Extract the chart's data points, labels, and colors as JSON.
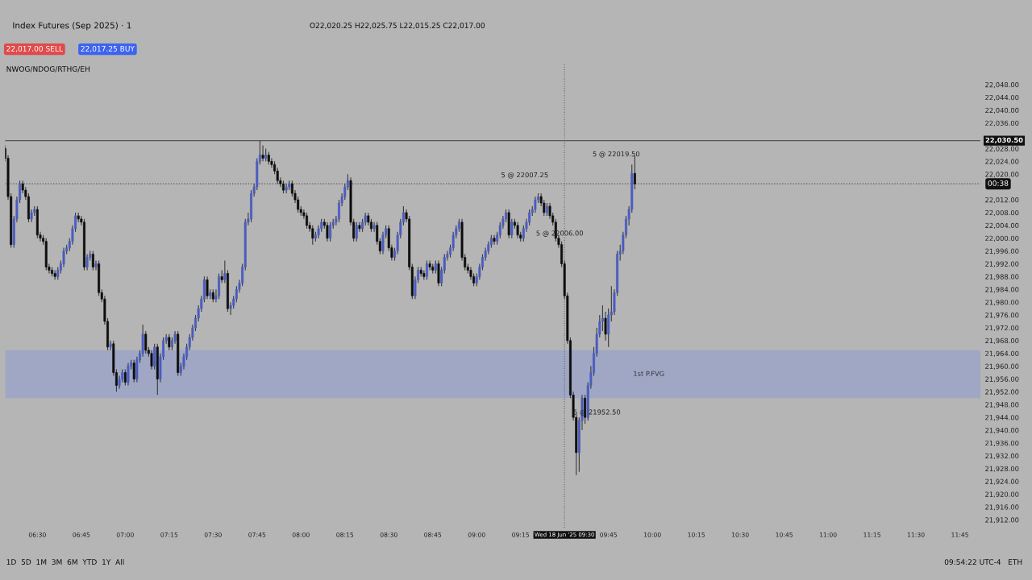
{
  "chart_data": {
    "type": "candlestick",
    "title": "Index Futures (Sep 2025) · 1",
    "subtitle": "O22,020.25 H22,025.75 L22,015.25 C22,017.00",
    "annotations": [
      "22,017.00 SELL",
      "22,017.25 BUY",
      "NWOG/NDOG/RTHG/EH",
      "1D  5D  1M  3M  6M  YTD  1Y  All",
      "09:54:22 UTC-4   ETH",
      "00:38",
      {
        "text": "5 @ 22007.25",
        "x": "2025-06-18T09:21",
        "y": 22013
      },
      {
        "text": "5 @ 22006.00",
        "x": "2025-06-18T09:23",
        "y": 22008
      },
      {
        "text": "5 @ 21952.50",
        "x": "2025-06-18T09:38",
        "y": 21950
      },
      {
        "text": "5 @ 22019.50",
        "x": "2025-06-18T09:53",
        "y": 22020.25
      }
    ],
    "x": [
      "2025-06-18T06:19",
      "2025-06-18T06:20",
      "2025-06-18T06:21",
      "2025-06-18T06:22",
      "2025-06-18T06:23",
      "2025-06-18T06:24",
      "2025-06-18T06:25",
      "2025-06-18T06:26",
      "2025-06-18T06:27",
      "2025-06-18T06:28",
      "2025-06-18T06:29",
      "2025-06-18T06:30",
      "2025-06-18T06:31",
      "2025-06-18T06:32",
      "2025-06-18T06:33",
      "2025-06-18T06:34",
      "2025-06-18T06:35",
      "2025-06-18T06:36",
      "2025-06-18T06:37",
      "2025-06-18T06:38",
      "2025-06-18T06:39",
      "2025-06-18T06:40",
      "2025-06-18T06:41",
      "2025-06-18T06:42",
      "2025-06-18T06:43",
      "2025-06-18T06:44",
      "2025-06-18T06:45",
      "2025-06-18T06:46",
      "2025-06-18T06:47",
      "2025-06-18T06:48",
      "2025-06-18T06:49",
      "2025-06-18T06:50",
      "2025-06-18T06:51",
      "2025-06-18T06:52",
      "2025-06-18T06:53",
      "2025-06-18T06:54",
      "2025-06-18T06:55",
      "2025-06-18T06:56",
      "2025-06-18T06:57",
      "2025-06-18T06:58",
      "2025-06-18T06:59",
      "2025-06-18T07:00",
      "2025-06-18T07:01",
      "2025-06-18T07:02",
      "2025-06-18T07:03",
      "2025-06-18T07:04",
      "2025-06-18T07:05",
      "2025-06-18T07:06",
      "2025-06-18T07:07",
      "2025-06-18T07:08",
      "2025-06-18T07:09",
      "2025-06-18T07:10",
      "2025-06-18T07:11",
      "2025-06-18T07:12",
      "2025-06-18T07:13",
      "2025-06-18T07:14",
      "2025-06-18T07:15",
      "2025-06-18T07:16",
      "2025-06-18T07:17",
      "2025-06-18T07:18",
      "2025-06-18T07:19",
      "2025-06-18T07:20",
      "2025-06-18T07:21",
      "2025-06-18T07:22",
      "2025-06-18T07:23",
      "2025-06-18T07:24",
      "2025-06-18T07:25",
      "2025-06-18T07:26",
      "2025-06-18T07:27",
      "2025-06-18T07:28",
      "2025-06-18T07:29",
      "2025-06-18T07:30",
      "2025-06-18T07:31",
      "2025-06-18T07:32",
      "2025-06-18T07:33",
      "2025-06-18T07:34",
      "2025-06-18T07:35",
      "2025-06-18T07:36",
      "2025-06-18T07:37",
      "2025-06-18T07:38",
      "2025-06-18T07:39",
      "2025-06-18T07:40",
      "2025-06-18T07:41",
      "2025-06-18T07:42",
      "2025-06-18T07:43",
      "2025-06-18T07:44",
      "2025-06-18T07:45",
      "2025-06-18T07:46",
      "2025-06-18T07:47",
      "2025-06-18T07:48",
      "2025-06-18T07:49",
      "2025-06-18T07:50",
      "2025-06-18T07:51",
      "2025-06-18T07:52",
      "2025-06-18T07:53",
      "2025-06-18T07:54",
      "2025-06-18T07:55",
      "2025-06-18T07:56",
      "2025-06-18T07:57",
      "2025-06-18T07:58",
      "2025-06-18T07:59",
      "2025-06-18T08:00",
      "2025-06-18T08:01",
      "2025-06-18T08:02",
      "2025-06-18T08:03",
      "2025-06-18T08:04",
      "2025-06-18T08:05",
      "2025-06-18T08:06",
      "2025-06-18T08:07",
      "2025-06-18T08:08",
      "2025-06-18T08:09",
      "2025-06-18T08:10",
      "2025-06-18T08:11",
      "2025-06-18T08:12",
      "2025-06-18T08:13",
      "2025-06-18T08:14",
      "2025-06-18T08:15",
      "2025-06-18T08:16",
      "2025-06-18T08:17",
      "2025-06-18T08:18",
      "2025-06-18T08:19",
      "2025-06-18T08:20",
      "2025-06-18T08:21",
      "2025-06-18T08:22",
      "2025-06-18T08:23",
      "2025-06-18T08:24",
      "2025-06-18T08:25",
      "2025-06-18T08:26",
      "2025-06-18T08:27",
      "2025-06-18T08:28",
      "2025-06-18T08:29",
      "2025-06-18T08:30",
      "2025-06-18T08:31",
      "2025-06-18T08:32",
      "2025-06-18T08:33",
      "2025-06-18T08:34",
      "2025-06-18T08:35",
      "2025-06-18T08:36",
      "2025-06-18T08:37",
      "2025-06-18T08:38",
      "2025-06-18T08:39",
      "2025-06-18T08:40",
      "2025-06-18T08:41",
      "2025-06-18T08:42",
      "2025-06-18T08:43",
      "2025-06-18T08:44",
      "2025-06-18T08:45",
      "2025-06-18T08:46",
      "2025-06-18T08:47",
      "2025-06-18T08:48",
      "2025-06-18T08:49",
      "2025-06-18T08:50",
      "2025-06-18T08:51",
      "2025-06-18T08:52",
      "2025-06-18T08:53",
      "2025-06-18T08:54",
      "2025-06-18T08:55",
      "2025-06-18T08:56",
      "2025-06-18T08:57",
      "2025-06-18T08:58",
      "2025-06-18T08:59",
      "2025-06-18T09:00",
      "2025-06-18T09:01",
      "2025-06-18T09:02",
      "2025-06-18T09:03",
      "2025-06-18T09:04",
      "2025-06-18T09:05",
      "2025-06-18T09:06",
      "2025-06-18T09:07",
      "2025-06-18T09:08",
      "2025-06-18T09:09",
      "2025-06-18T09:10",
      "2025-06-18T09:11",
      "2025-06-18T09:12",
      "2025-06-18T09:13",
      "2025-06-18T09:14",
      "2025-06-18T09:15",
      "2025-06-18T09:16",
      "2025-06-18T09:17",
      "2025-06-18T09:18",
      "2025-06-18T09:19",
      "2025-06-18T09:20",
      "2025-06-18T09:21",
      "2025-06-18T09:22",
      "2025-06-18T09:23",
      "2025-06-18T09:24",
      "2025-06-18T09:25",
      "2025-06-18T09:26",
      "2025-06-18T09:27",
      "2025-06-18T09:28",
      "2025-06-18T09:29",
      "2025-06-18T09:30",
      "2025-06-18T09:31",
      "2025-06-18T09:32",
      "2025-06-18T09:33",
      "2025-06-18T09:34",
      "2025-06-18T09:35",
      "2025-06-18T09:36",
      "2025-06-18T09:37",
      "2025-06-18T09:38",
      "2025-06-18T09:39",
      "2025-06-18T09:40",
      "2025-06-18T09:41",
      "2025-06-18T09:42",
      "2025-06-18T09:43",
      "2025-06-18T09:44",
      "2025-06-18T09:45",
      "2025-06-18T09:46",
      "2025-06-18T09:47",
      "2025-06-18T09:48",
      "2025-06-18T09:49",
      "2025-06-18T09:50",
      "2025-06-18T09:51",
      "2025-06-18T09:52",
      "2025-06-18T09:53",
      "2025-06-18T09:54"
    ],
    "ohlc": [
      [
        22028,
        22029,
        22024,
        22025
      ],
      [
        22025,
        22026,
        22012,
        22013
      ],
      [
        22013,
        22014,
        21997,
        21998
      ],
      [
        21998,
        22007,
        21997,
        22006
      ],
      [
        22006,
        22013,
        22005,
        22012
      ],
      [
        22012,
        22018,
        22011,
        22017
      ],
      [
        22017,
        22018,
        22014,
        22015
      ],
      [
        22015,
        22016,
        22012,
        22013
      ],
      [
        22013,
        22014,
        22005,
        22006
      ],
      [
        22006,
        22009,
        22005,
        22008
      ],
      [
        22008,
        22010,
        22007,
        22009
      ],
      [
        22009,
        22010,
        22000,
        22001
      ],
      [
        22001,
        22002,
        21999,
        22000
      ],
      [
        22000,
        22001,
        21998,
        21999
      ],
      [
        21999,
        22000,
        21990,
        21991
      ],
      [
        21991,
        21992,
        21989,
        21990
      ],
      [
        21990,
        21991,
        21988,
        21989
      ],
      [
        21989,
        21990,
        21987,
        21988
      ],
      [
        21988,
        21991,
        21987,
        21990
      ],
      [
        21990,
        21993,
        21989,
        21992
      ],
      [
        21992,
        21997,
        21991,
        21996
      ],
      [
        21996,
        21998,
        21995,
        21997
      ],
      [
        21997,
        22000,
        21996,
        21999
      ],
      [
        21999,
        22004,
        21998,
        22003
      ],
      [
        22003,
        22008,
        22002,
        22007
      ],
      [
        22007,
        22008,
        22005,
        22006
      ],
      [
        22006,
        22007,
        22004,
        22005
      ],
      [
        22005,
        22006,
        21990,
        21991
      ],
      [
        21991,
        21995,
        21990,
        21994
      ],
      [
        21994,
        21996,
        21993,
        21995
      ],
      [
        21995,
        21996,
        21990,
        21991
      ],
      [
        21991,
        21993,
        21990,
        21992
      ],
      [
        21992,
        21993,
        21982,
        21983
      ],
      [
        21983,
        21984,
        21980,
        21981
      ],
      [
        21981,
        21982,
        21973,
        21974
      ],
      [
        21974,
        21975,
        21965,
        21966
      ],
      [
        21966,
        21968,
        21965,
        21967
      ],
      [
        21967,
        21968,
        21957,
        21958
      ],
      [
        21958,
        21959,
        21952,
        21954
      ],
      [
        21954,
        21957,
        21953,
        21956
      ],
      [
        21956,
        21959,
        21955,
        21958
      ],
      [
        21958,
        21959,
        21954,
        21955
      ],
      [
        21955,
        21961,
        21954,
        21960
      ],
      [
        21960,
        21962,
        21959,
        21961
      ],
      [
        21961,
        21962,
        21955,
        21956
      ],
      [
        21956,
        21963,
        21955,
        21962
      ],
      [
        21962,
        21965,
        21961,
        21964
      ],
      [
        21964,
        21973,
        21963,
        21970
      ],
      [
        21970,
        21971,
        21964,
        21965
      ],
      [
        21965,
        21966,
        21963,
        21964
      ],
      [
        21964,
        21965,
        21959,
        21960
      ],
      [
        21960,
        21967,
        21959,
        21966
      ],
      [
        21966,
        21967,
        21951,
        21956
      ],
      [
        21956,
        21964,
        21955,
        21963
      ],
      [
        21963,
        21969,
        21962,
        21968
      ],
      [
        21968,
        21970,
        21967,
        21969
      ],
      [
        21969,
        21970,
        21965,
        21966
      ],
      [
        21966,
        21969,
        21965,
        21968
      ],
      [
        21968,
        21971,
        21967,
        21970
      ],
      [
        21970,
        21971,
        21957,
        21958
      ],
      [
        21958,
        21961,
        21957,
        21960
      ],
      [
        21960,
        21964,
        21959,
        21963
      ],
      [
        21963,
        21967,
        21962,
        21966
      ],
      [
        21966,
        21970,
        21965,
        21969
      ],
      [
        21969,
        21973,
        21968,
        21972
      ],
      [
        21972,
        21976,
        21971,
        21975
      ],
      [
        21975,
        21979,
        21974,
        21978
      ],
      [
        21978,
        21982,
        21977,
        21981
      ],
      [
        21981,
        21988,
        21980,
        21987
      ],
      [
        21987,
        21988,
        21981,
        21982
      ],
      [
        21982,
        21984,
        21981,
        21983
      ],
      [
        21983,
        21984,
        21980,
        21981
      ],
      [
        21981,
        21984,
        21980,
        21982
      ],
      [
        21982,
        21989,
        21981,
        21988
      ],
      [
        21988,
        21990,
        21986,
        21987
      ],
      [
        21987,
        21993,
        21986,
        21989
      ],
      [
        21989,
        21990,
        21977,
        21978
      ],
      [
        21978,
        21980,
        21976,
        21979
      ],
      [
        21979,
        21982,
        21978,
        21981
      ],
      [
        21981,
        21985,
        21980,
        21984
      ],
      [
        21984,
        21987,
        21983,
        21986
      ],
      [
        21986,
        21992,
        21985,
        21991
      ],
      [
        21991,
        22006,
        21990,
        22005
      ],
      [
        22005,
        22008,
        22004,
        22006
      ],
      [
        22006,
        22015,
        22005,
        22014
      ],
      [
        22014,
        22017,
        22013,
        22016
      ],
      [
        22016,
        22025,
        22015,
        22024
      ],
      [
        22024,
        22030.5,
        22023,
        22026
      ],
      [
        22026,
        22029,
        22024,
        22025
      ],
      [
        22025,
        22028,
        22024,
        22026
      ],
      [
        22026,
        22027,
        22023,
        22024
      ],
      [
        22024,
        22025,
        22022,
        22023
      ],
      [
        22023,
        22024,
        22020,
        22021
      ],
      [
        22021,
        22022,
        22017,
        22018
      ],
      [
        22018,
        22019,
        22016,
        22017
      ],
      [
        22017,
        22018,
        22014,
        22015
      ],
      [
        22015,
        22017,
        22014,
        22016
      ],
      [
        22016,
        22018,
        22015,
        22017
      ],
      [
        22017,
        22018,
        22013,
        22014
      ],
      [
        22014,
        22015,
        22011,
        22012
      ],
      [
        22012,
        22013,
        22008,
        22009
      ],
      [
        22009,
        22010,
        22007,
        22008
      ],
      [
        22008,
        22009,
        22006,
        22007
      ],
      [
        22007,
        22008,
        22003,
        22004
      ],
      [
        22004,
        22005,
        22002,
        22003
      ],
      [
        22003,
        22004,
        21998,
        22000
      ],
      [
        22000,
        22002,
        21999,
        22001
      ],
      [
        22001,
        22004,
        22000,
        22003
      ],
      [
        22003,
        22006,
        22002,
        22005
      ],
      [
        22005,
        22006,
        22003,
        22004
      ],
      [
        22004,
        22005,
        21999,
        22000
      ],
      [
        22000,
        22005,
        21999,
        22004
      ],
      [
        22004,
        22006,
        22003,
        22005
      ],
      [
        22005,
        22007,
        22004,
        22006
      ],
      [
        22006,
        22012,
        22005,
        22011
      ],
      [
        22011,
        22014,
        22010,
        22013
      ],
      [
        22013,
        22017,
        22012,
        22016
      ],
      [
        22016,
        22020,
        22015,
        22018
      ],
      [
        22018,
        22019,
        22004,
        22005
      ],
      [
        22005,
        22006,
        21999,
        22000
      ],
      [
        22000,
        22005,
        21999,
        22004
      ],
      [
        22004,
        22005,
        22002,
        22003
      ],
      [
        22003,
        22006,
        22002,
        22005
      ],
      [
        22005,
        22008,
        22004,
        22007
      ],
      [
        22007,
        22008,
        22004,
        22005
      ],
      [
        22005,
        22006,
        22002,
        22003
      ],
      [
        22003,
        22005,
        22002,
        22004
      ],
      [
        22004,
        22005,
        21998,
        21999
      ],
      [
        21999,
        22000,
        21995,
        21996
      ],
      [
        21996,
        22002,
        21995,
        22001
      ],
      [
        22001,
        22004,
        22000,
        22003
      ],
      [
        22003,
        22004,
        21996,
        21997
      ],
      [
        21997,
        21998,
        21993,
        21994
      ],
      [
        21994,
        21997,
        21993,
        21996
      ],
      [
        21996,
        22002,
        21995,
        22001
      ],
      [
        22001,
        22006,
        22000,
        22005
      ],
      [
        22005,
        22010,
        22004,
        22008
      ],
      [
        22008,
        22009,
        22005,
        22006
      ],
      [
        22006,
        22007,
        21990,
        21991
      ],
      [
        21991,
        21992,
        21981,
        21982
      ],
      [
        21982,
        21988,
        21981,
        21987
      ],
      [
        21987,
        21991,
        21986,
        21990
      ],
      [
        21990,
        21991,
        21988,
        21989
      ],
      [
        21989,
        21990,
        21987,
        21988
      ],
      [
        21988,
        21993,
        21987,
        21992
      ],
      [
        21992,
        21993,
        21990,
        21991
      ],
      [
        21991,
        21992,
        21989,
        21990
      ],
      [
        21990,
        21993,
        21989,
        21992
      ],
      [
        21992,
        21993,
        21985,
        21986
      ],
      [
        21986,
        21991,
        21985,
        21990
      ],
      [
        21990,
        21995,
        21989,
        21994
      ],
      [
        21994,
        21996,
        21993,
        21995
      ],
      [
        21995,
        21998,
        21994,
        21997
      ],
      [
        21997,
        22002,
        21996,
        22001
      ],
      [
        22001,
        22004,
        22000,
        22003
      ],
      [
        22003,
        22006,
        22002,
        22005
      ],
      [
        22005,
        22006,
        21993,
        21994
      ],
      [
        21994,
        21995,
        21990,
        21991
      ],
      [
        21991,
        21992,
        21989,
        21990
      ],
      [
        21990,
        21991,
        21987,
        21988
      ],
      [
        21988,
        21989,
        21985,
        21986
      ],
      [
        21986,
        21989,
        21985,
        21988
      ],
      [
        21988,
        21992,
        21987,
        21991
      ],
      [
        21991,
        21995,
        21990,
        21994
      ],
      [
        21994,
        21997,
        21993,
        21996
      ],
      [
        21996,
        21999,
        21995,
        21998
      ],
      [
        21998,
        22001,
        21997,
        22000
      ],
      [
        22000,
        22001,
        21998,
        21999
      ],
      [
        21999,
        22002,
        21998,
        22001
      ],
      [
        22001,
        22005,
        22000,
        22004
      ],
      [
        22004,
        22007,
        22003,
        22006
      ],
      [
        22006,
        22009,
        22005,
        22008
      ],
      [
        22008,
        22009,
        22000,
        22001
      ],
      [
        22001,
        22006,
        22000,
        22005
      ],
      [
        22005,
        22006,
        22003,
        22004
      ],
      [
        22004,
        22005,
        22000,
        22001
      ],
      [
        22001,
        22002,
        21999,
        22000
      ],
      [
        22000,
        22004,
        21999,
        22003
      ],
      [
        22003,
        22006,
        22002,
        22005
      ],
      [
        22005,
        22009,
        22004,
        22008
      ],
      [
        22008,
        22010,
        22007,
        22009
      ],
      [
        22009,
        22013,
        22008,
        22012
      ],
      [
        22012,
        22014,
        22011,
        22013
      ],
      [
        22013,
        22014,
        22010,
        22011
      ],
      [
        22011,
        22012,
        22007,
        22008
      ],
      [
        22008,
        22011,
        22007,
        22010
      ],
      [
        22010,
        22011,
        22006,
        22007
      ],
      [
        22007,
        22008,
        22004,
        22005
      ],
      [
        22005,
        22006,
        21999,
        22000
      ],
      [
        22000,
        22001,
        21997,
        21998
      ],
      [
        21998,
        21999,
        21991,
        21992
      ],
      [
        21992,
        21993,
        21981,
        21982
      ],
      [
        21982,
        21983,
        21967,
        21968
      ],
      [
        21968,
        21969,
        21950,
        21951
      ],
      [
        21951,
        21952,
        21943,
        21944
      ],
      [
        21944,
        21945,
        21926,
        21933
      ],
      [
        21933,
        21944,
        21927,
        21943
      ],
      [
        21943,
        21951,
        21940,
        21950
      ],
      [
        21950,
        21951,
        21942,
        21944
      ],
      [
        21944,
        21955,
        21943,
        21954
      ],
      [
        21954,
        21960,
        21953,
        21958
      ],
      [
        21958,
        21966,
        21957,
        21964
      ],
      [
        21964,
        21972,
        21963,
        21970
      ],
      [
        21970,
        21976,
        21969,
        21974
      ],
      [
        21974,
        21979,
        21971,
        21975
      ],
      [
        21975,
        21977,
        21968,
        21970
      ],
      [
        21970,
        21978,
        21966,
        21976
      ],
      [
        21976,
        21985,
        21974,
        21977
      ],
      [
        21977,
        21984,
        21976,
        21983
      ],
      [
        21983,
        21996,
        21982,
        21995
      ],
      [
        21995,
        21998,
        21993,
        21996
      ],
      [
        21996,
        22002,
        21995,
        22001
      ],
      [
        22001,
        22007,
        22000,
        22006
      ],
      [
        22006,
        22010,
        22004,
        22009
      ],
      [
        22009,
        22023,
        22008,
        22020.25
      ],
      [
        22020.25,
        22025.75,
        22015.25,
        22017
      ]
    ],
    "xlim": [
      "2025-06-18T06:19",
      "2025-06-18T11:52"
    ],
    "xticks": [
      {
        "value": "2025-06-18T06:30",
        "label": "06:30"
      },
      {
        "value": "2025-06-18T06:45",
        "label": "06:45"
      },
      {
        "value": "2025-06-18T07:00",
        "label": "07:00"
      },
      {
        "value": "2025-06-18T07:15",
        "label": "07:15"
      },
      {
        "value": "2025-06-18T07:30",
        "label": "07:30"
      },
      {
        "value": "2025-06-18T07:45",
        "label": "07:45"
      },
      {
        "value": "2025-06-18T08:00",
        "label": "08:00"
      },
      {
        "value": "2025-06-18T08:15",
        "label": "08:15"
      },
      {
        "value": "2025-06-18T08:30",
        "label": "08:30"
      },
      {
        "value": "2025-06-18T08:45",
        "label": "08:45"
      },
      {
        "value": "2025-06-18T09:00",
        "label": "09:00"
      },
      {
        "value": "2025-06-18T09:15",
        "label": "09:15"
      },
      {
        "value": "2025-06-18T09:30",
        "label": "Wed 18 Jun '25 09:30"
      },
      {
        "value": "2025-06-18T09:45",
        "label": "09:45"
      },
      {
        "value": "2025-06-18T10:00",
        "label": "10:00"
      },
      {
        "value": "2025-06-18T10:15",
        "label": "10:15"
      },
      {
        "value": "2025-06-18T10:30",
        "label": "10:30"
      },
      {
        "value": "2025-06-18T10:45",
        "label": "10:45"
      },
      {
        "value": "2025-06-18T11:00",
        "label": "11:00"
      },
      {
        "value": "2025-06-18T11:15",
        "label": "11:15"
      },
      {
        "value": "2025-06-18T11:30",
        "label": "11:30"
      },
      {
        "value": "2025-06-18T11:45",
        "label": "11:45"
      }
    ],
    "ylim": [
      21909.5,
      22054.5
    ],
    "yticks": [
      {
        "value": 21912,
        "label": "21,912.00"
      },
      {
        "value": 21916,
        "label": "21,916.00"
      },
      {
        "value": 21920,
        "label": "21,920.00"
      },
      {
        "value": 21924,
        "label": "21,924.00"
      },
      {
        "value": 21928,
        "label": "21,928.00"
      },
      {
        "value": 21932,
        "label": "21,932.00"
      },
      {
        "value": 21936,
        "label": "21,936.00"
      },
      {
        "value": 21940,
        "label": "21,940.00"
      },
      {
        "value": 21944,
        "label": "21,944.00"
      },
      {
        "value": 21948,
        "label": "21,948.00"
      },
      {
        "value": 21952,
        "label": "21,952.00"
      },
      {
        "value": 21956,
        "label": "21,956.00"
      },
      {
        "value": 21960,
        "label": "21,960.00"
      },
      {
        "value": 21964,
        "label": "21,964.00"
      },
      {
        "value": 21968,
        "label": "21,968.00"
      },
      {
        "value": 21972,
        "label": "21,972.00"
      },
      {
        "value": 21976,
        "label": "21,976.00"
      },
      {
        "value": 21980,
        "label": "21,980.00"
      },
      {
        "value": 21984,
        "label": "21,984.00"
      },
      {
        "value": 21988,
        "label": "21,988.00"
      },
      {
        "value": 21992,
        "label": "21,992.00"
      },
      {
        "value": 21996,
        "label": "21,996.00"
      },
      {
        "value": 22000,
        "label": "22,000.00"
      },
      {
        "value": 22004,
        "label": "22,004.00"
      },
      {
        "value": 22008,
        "label": "22,008.00"
      },
      {
        "value": 22012,
        "label": "22,012.00"
      },
      {
        "value": 22020,
        "label": "22,020.00"
      },
      {
        "value": 22024,
        "label": "22,024.00"
      },
      {
        "value": 22028,
        "label": "22,028.00"
      },
      {
        "value": 22036,
        "label": "22,036.00"
      },
      {
        "value": 22040,
        "label": "22,040.00"
      },
      {
        "value": 22044,
        "label": "22,044.00"
      },
      {
        "value": 22048,
        "label": "22,048.00"
      }
    ],
    "ref_lines": [
      {
        "axis": "y",
        "value": 22030.5,
        "label": "22,030.50",
        "color": "#555555",
        "line_style": "solid"
      },
      {
        "axis": "y",
        "value": 22017,
        "color": "#555555",
        "line_style": "dotted"
      },
      {
        "axis": "x",
        "value": "2025-06-18T09:30",
        "color": "#666666",
        "line_style": "dotted"
      }
    ],
    "bands": [
      {
        "axis": "y",
        "from": 21950,
        "to": 21965,
        "label": "1st P.FVG",
        "color": "#8d9bd0"
      }
    ],
    "legend": false
  }
}
